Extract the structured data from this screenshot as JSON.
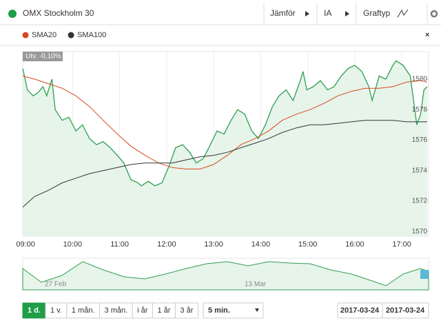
{
  "chart_data": {
    "type": "line",
    "title": "OMX Stockholm 30",
    "controls": [
      "Jämför",
      "IA",
      "Graftyp"
    ],
    "annotation": "Utv. -0,10%",
    "xlim": [
      8.94,
      17.57
    ],
    "ylim": [
      1569.7,
      1581.8
    ],
    "xticks": [
      {
        "value": 9,
        "label": "09:00"
      },
      {
        "value": 10,
        "label": "10:00"
      },
      {
        "value": 11,
        "label": "11:00"
      },
      {
        "value": 12,
        "label": "12:00"
      },
      {
        "value": 13,
        "label": "13:00"
      },
      {
        "value": 14,
        "label": "14:00"
      },
      {
        "value": 15,
        "label": "15:00"
      },
      {
        "value": 16,
        "label": "16:00"
      },
      {
        "value": 17,
        "label": "17:00"
      }
    ],
    "yticks": [
      1570,
      1572,
      1574,
      1576,
      1578,
      1580
    ],
    "grid": "x",
    "series": [
      {
        "color": "#2e9e4f",
        "fill": "#e6f4ea",
        "x": [
          8.94,
          9.04,
          9.16,
          9.26,
          9.37,
          9.45,
          9.56,
          9.63,
          9.78,
          9.92,
          10.07,
          10.21,
          10.36,
          10.51,
          10.65,
          10.8,
          10.95,
          11.09,
          11.24,
          11.39,
          11.46,
          11.61,
          11.75,
          11.9,
          12.05,
          12.19,
          12.34,
          12.49,
          12.63,
          12.78,
          12.93,
          13.07,
          13.22,
          13.37,
          13.51,
          13.66,
          13.81,
          13.95,
          14.1,
          14.25,
          14.39,
          14.54,
          14.69,
          14.83,
          14.9,
          14.98,
          15.12,
          15.27,
          15.42,
          15.56,
          15.71,
          15.86,
          16.0,
          16.15,
          16.3,
          16.37,
          16.52,
          16.66,
          16.81,
          16.88,
          17.03,
          17.18,
          17.25,
          17.32,
          17.4,
          17.47,
          17.54
        ],
        "values": [
          1580.7,
          1579.3,
          1578.9,
          1579.1,
          1579.5,
          1578.9,
          1580.0,
          1578.0,
          1577.3,
          1577.5,
          1576.6,
          1577.0,
          1576.1,
          1575.7,
          1575.9,
          1575.5,
          1575.0,
          1574.5,
          1573.4,
          1573.2,
          1573.0,
          1573.3,
          1573.0,
          1573.2,
          1574.3,
          1575.5,
          1575.7,
          1575.2,
          1574.5,
          1574.8,
          1575.7,
          1576.6,
          1576.4,
          1577.3,
          1578.0,
          1577.7,
          1576.6,
          1576.1,
          1577.0,
          1578.2,
          1578.9,
          1579.3,
          1578.6,
          1579.8,
          1580.5,
          1579.3,
          1579.5,
          1579.9,
          1579.3,
          1579.5,
          1580.2,
          1580.7,
          1580.9,
          1580.5,
          1579.5,
          1578.6,
          1580.2,
          1580.0,
          1580.9,
          1581.2,
          1580.9,
          1580.2,
          1578.6,
          1577.0,
          1577.7,
          1579.3,
          1579.5
        ]
      },
      {
        "name": "SMA20",
        "color": "#d9471b",
        "x": [
          8.94,
          9.19,
          9.48,
          9.78,
          10.07,
          10.36,
          10.65,
          10.95,
          11.24,
          11.54,
          11.83,
          12.12,
          12.41,
          12.71,
          13.0,
          13.29,
          13.58,
          13.88,
          14.17,
          14.46,
          14.76,
          15.05,
          15.34,
          15.64,
          15.93,
          16.22,
          16.52,
          16.81,
          17.1,
          17.4,
          17.54
        ],
        "values": [
          1580.2,
          1580.0,
          1579.7,
          1579.4,
          1578.9,
          1578.2,
          1577.3,
          1576.4,
          1575.6,
          1575.0,
          1574.5,
          1574.2,
          1574.1,
          1574.1,
          1574.4,
          1575.0,
          1575.7,
          1576.1,
          1576.6,
          1577.3,
          1577.7,
          1578.0,
          1578.4,
          1578.9,
          1579.2,
          1579.4,
          1579.4,
          1579.5,
          1579.8,
          1579.9,
          1579.8
        ]
      },
      {
        "name": "SMA100",
        "color": "#333333",
        "x": [
          8.94,
          9.19,
          9.48,
          9.78,
          10.07,
          10.36,
          10.65,
          10.95,
          11.24,
          11.54,
          11.83,
          12.12,
          12.41,
          12.71,
          13.0,
          13.29,
          13.58,
          13.88,
          14.17,
          14.46,
          14.76,
          15.05,
          15.34,
          15.64,
          15.93,
          16.22,
          16.52,
          16.81,
          17.1,
          17.4,
          17.54
        ],
        "values": [
          1571.6,
          1572.3,
          1572.7,
          1573.2,
          1573.5,
          1573.8,
          1574.0,
          1574.2,
          1574.4,
          1574.5,
          1574.5,
          1574.5,
          1574.7,
          1574.9,
          1575.0,
          1575.2,
          1575.5,
          1575.8,
          1576.1,
          1576.5,
          1576.8,
          1577.0,
          1577.0,
          1577.1,
          1577.2,
          1577.3,
          1577.3,
          1577.3,
          1577.2,
          1577.2,
          1577.2
        ]
      }
    ],
    "navigator_labels": [
      "27 Feb",
      "13 Mar"
    ],
    "ranges": [
      "1 d.",
      "1 v.",
      "1 mån.",
      "3 mån.",
      "i år",
      "1 år",
      "3 år"
    ],
    "interval": "5 min.",
    "dates": [
      "2017-03-24",
      "2017-03-24"
    ]
  }
}
